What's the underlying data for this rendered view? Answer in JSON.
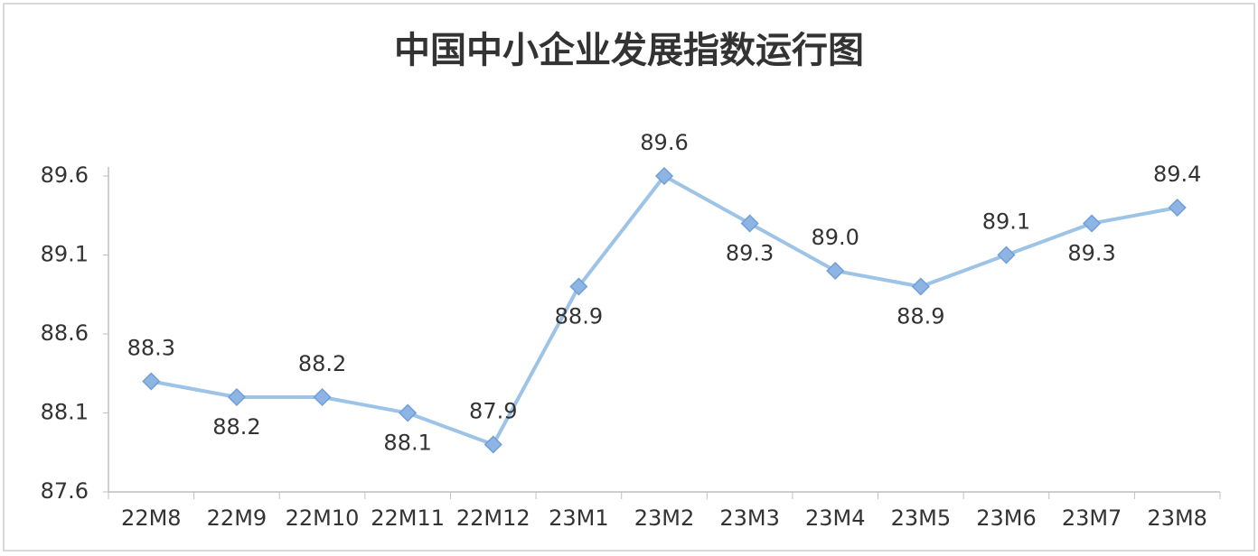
{
  "chart_data": {
    "type": "line",
    "title": "中国中小企业发展指数运行图",
    "categories": [
      "22M8",
      "22M9",
      "22M10",
      "22M11",
      "22M12",
      "23M1",
      "23M2",
      "23M3",
      "23M4",
      "23M5",
      "23M6",
      "23M7",
      "23M8"
    ],
    "values": [
      88.3,
      88.2,
      88.2,
      88.1,
      87.9,
      88.9,
      89.6,
      89.3,
      89.0,
      88.9,
      89.1,
      89.3,
      89.4
    ],
    "value_labels": [
      "88.3",
      "88.2",
      "88.2",
      "88.1",
      "87.9",
      "88.9",
      "89.6",
      "89.3",
      "89.0",
      "88.9",
      "89.1",
      "89.3",
      "89.4"
    ],
    "color": "#9dc3e6",
    "ylim": [
      87.6,
      89.6
    ],
    "yticks": [
      87.6,
      88.1,
      88.6,
      89.1,
      89.6
    ],
    "grid": false
  }
}
